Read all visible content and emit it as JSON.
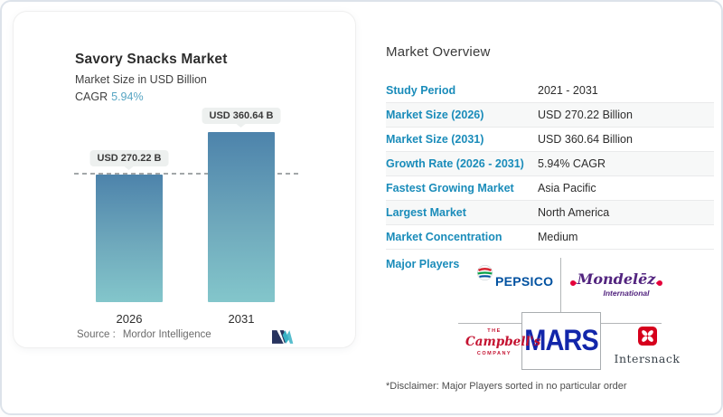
{
  "chart_card": {
    "title": "Savory Snacks Market",
    "subtitle": "Market Size in USD Billion",
    "cagr_label": "CAGR",
    "cagr_value": "5.94%",
    "source_label": "Source :",
    "source_value": "Mordor Intelligence"
  },
  "chart_data": {
    "type": "bar",
    "title": "Savory Snacks Market",
    "subtitle": "Market Size in USD Billion",
    "unit": "USD Billion",
    "cagr": "5.94%",
    "categories": [
      "2026",
      "2031"
    ],
    "values": [
      270.22,
      360.64
    ],
    "bar_labels": [
      "USD 270.22 B",
      "USD 360.64 B"
    ],
    "ylim": [
      0,
      380
    ],
    "reference_line_value": 270.22,
    "grid": false,
    "legend": false,
    "bar_gradient_top": "#4d83ab",
    "bar_gradient_bottom": "#83c6cb"
  },
  "overview": {
    "title": "Market Overview",
    "rows": [
      {
        "label": "Study Period",
        "value": "2021 - 2031"
      },
      {
        "label": "Market Size (2026)",
        "value": "USD 270.22 Billion"
      },
      {
        "label": "Market Size (2031)",
        "value": "USD 360.64 Billion"
      },
      {
        "label": "Growth Rate (2026 - 2031)",
        "value": "5.94% CAGR"
      },
      {
        "label": "Fastest Growing Market",
        "value": "Asia Pacific"
      },
      {
        "label": "Largest Market",
        "value": "North America"
      },
      {
        "label": "Market Concentration",
        "value": "Medium"
      }
    ],
    "major_players_label": "Major Players",
    "players": {
      "pepsico": "PEPSICO",
      "mondelez_main": "Mondelēz",
      "mondelez_sub": "International",
      "mars": "MARS",
      "campbells_the": "THE",
      "campbells_name": "Campbell's",
      "campbells_company": "COMPANY",
      "intersnack": "Intersnack"
    },
    "disclaimer": "*Disclaimer: Major Players sorted in no particular order"
  },
  "icons": {
    "mordor-intelligence-logo": "stylized M mark, navy + teal slashes",
    "pepsico-globe-icon": "striped globe red/green/blue",
    "intersnack-clover-icon": "white four-petal clover on red rounded square",
    "mondelez-swirl-icon": "red swirl accents"
  },
  "colors": {
    "label_blue": "#1a8cba",
    "cagr_teal": "#57a5c3",
    "pepsico_blue": "#0051a0",
    "mondelez_purple": "#52247f",
    "mondelez_red": "#e4003a",
    "mars_blue": "#1226aa",
    "campbells_red": "#c41230",
    "intersnack_red": "#d6001c",
    "mordor_navy": "#27335e",
    "mordor_teal": "#38b1c4"
  }
}
